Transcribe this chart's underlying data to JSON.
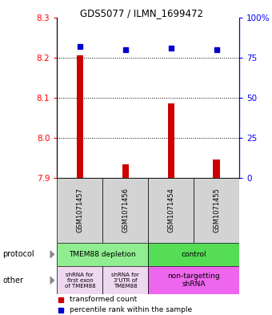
{
  "title": "GDS5077 / ILMN_1699472",
  "samples": [
    "GSM1071457",
    "GSM1071456",
    "GSM1071454",
    "GSM1071455"
  ],
  "red_values": [
    8.205,
    7.935,
    8.085,
    7.945
  ],
  "blue_values": [
    82,
    80,
    81,
    80
  ],
  "ylim_left": [
    7.9,
    8.3
  ],
  "ylim_right": [
    0,
    100
  ],
  "yticks_left": [
    7.9,
    8.0,
    8.1,
    8.2,
    8.3
  ],
  "yticks_right": [
    0,
    25,
    50,
    75,
    100
  ],
  "ytick_labels_right": [
    "0",
    "25",
    "50",
    "75",
    "100%"
  ],
  "bar_color": "#CC0000",
  "dot_color": "#0000CC",
  "sample_box_color": "#D3D3D3",
  "protocol_depletion_color": "#90EE90",
  "protocol_control_color": "#55DD55",
  "other_light_color": "#EED8F0",
  "other_magenta_color": "#EE66EE",
  "dotted_line_color": "#000000",
  "bar_width": 0.15
}
